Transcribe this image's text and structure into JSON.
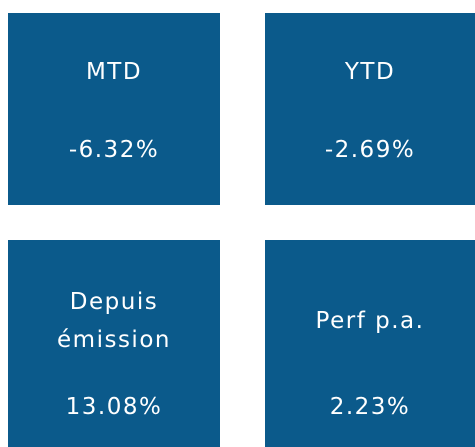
{
  "tiles": [
    {
      "label": "MTD",
      "value": "-6.32%"
    },
    {
      "label": "YTD",
      "value": "-2.69%"
    },
    {
      "label": "Depuis émission",
      "value": "13.08%"
    },
    {
      "label": "Perf p.a.",
      "value": "2.23%"
    }
  ]
}
